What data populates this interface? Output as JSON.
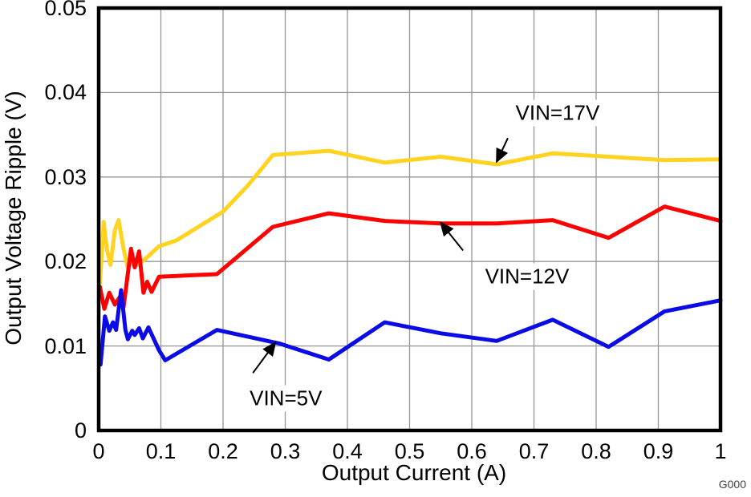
{
  "figure": {
    "watermark": "G000"
  },
  "chart_data": {
    "type": "line",
    "title": "",
    "xlabel": "Output Current (A)",
    "ylabel": "Output Voltage Ripple (V)",
    "xlim": [
      0,
      1
    ],
    "ylim": [
      0,
      0.05
    ],
    "grid": true,
    "grid_color": "#969696",
    "axis_color": "#000000",
    "x_ticks": {
      "values": [
        0,
        0.1,
        0.2,
        0.3,
        0.4,
        0.5,
        0.6,
        0.7,
        0.8,
        0.9,
        1
      ],
      "labels": [
        "0",
        "0.1",
        "0.2",
        "0.3",
        "0.4",
        "0.5",
        "0.6",
        "0.7",
        "0.8",
        "0.9",
        "1"
      ]
    },
    "y_ticks": {
      "values": [
        0,
        0.01,
        0.02,
        0.03,
        0.04,
        0.05
      ],
      "labels": [
        "0",
        "0.01",
        "0.02",
        "0.03",
        "0.04",
        "0.05"
      ]
    },
    "series": [
      {
        "name": "VIN=17V",
        "color": "#FFD320",
        "x": [
          0.002,
          0.008,
          0.013,
          0.019,
          0.026,
          0.032,
          0.04,
          0.047,
          0.055,
          0.062,
          0.075,
          0.097,
          0.125,
          0.2,
          0.24,
          0.28,
          0.37,
          0.46,
          0.55,
          0.64,
          0.73,
          0.82,
          0.91,
          1.0
        ],
        "y": [
          0.0174,
          0.0247,
          0.0215,
          0.0196,
          0.0237,
          0.0249,
          0.0215,
          0.0192,
          0.0204,
          0.0196,
          0.0203,
          0.0218,
          0.0225,
          0.0259,
          0.029,
          0.0326,
          0.0331,
          0.0317,
          0.0324,
          0.0315,
          0.0328,
          0.0324,
          0.032,
          0.0321
        ]
      },
      {
        "name": "VIN=12V",
        "color": "#FF0000",
        "x": [
          0.002,
          0.009,
          0.017,
          0.026,
          0.034,
          0.04,
          0.052,
          0.058,
          0.065,
          0.072,
          0.078,
          0.085,
          0.097,
          0.19,
          0.28,
          0.37,
          0.46,
          0.55,
          0.64,
          0.73,
          0.82,
          0.91,
          1.0
        ],
        "y": [
          0.017,
          0.0144,
          0.0163,
          0.0149,
          0.0158,
          0.0146,
          0.0215,
          0.0193,
          0.0212,
          0.0163,
          0.0176,
          0.0164,
          0.0182,
          0.0185,
          0.0241,
          0.0257,
          0.0248,
          0.0245,
          0.0245,
          0.0249,
          0.0228,
          0.0265,
          0.0248
        ]
      },
      {
        "name": "VIN=5V",
        "color": "#0B0BE6",
        "x": [
          0.003,
          0.01,
          0.017,
          0.023,
          0.028,
          0.036,
          0.043,
          0.047,
          0.054,
          0.058,
          0.065,
          0.071,
          0.08,
          0.097,
          0.107,
          0.19,
          0.29,
          0.37,
          0.46,
          0.55,
          0.64,
          0.73,
          0.82,
          0.91,
          1.0
        ],
        "y": [
          0.0078,
          0.0135,
          0.0118,
          0.0128,
          0.0119,
          0.0166,
          0.0119,
          0.0108,
          0.0118,
          0.0113,
          0.0121,
          0.0109,
          0.0122,
          0.0095,
          0.0083,
          0.0119,
          0.0103,
          0.0084,
          0.0128,
          0.0115,
          0.0106,
          0.0131,
          0.0099,
          0.0141,
          0.0154
        ]
      }
    ],
    "annotations": [
      {
        "text": "VIN=17V",
        "text_x": 0.738,
        "text_y": 0.0376,
        "tail_x": 0.658,
        "tail_y": 0.0346,
        "tip_x": 0.64,
        "tip_y": 0.0318
      },
      {
        "text": "VIN=12V",
        "text_x": 0.689,
        "text_y": 0.0182,
        "tail_x": 0.586,
        "tail_y": 0.0213,
        "tip_x": 0.55,
        "tip_y": 0.0246
      },
      {
        "text": "VIN=5V",
        "text_x": 0.301,
        "text_y": 0.0038,
        "tail_x": 0.248,
        "tail_y": 0.0068,
        "tip_x": 0.284,
        "tip_y": 0.0104
      }
    ]
  }
}
